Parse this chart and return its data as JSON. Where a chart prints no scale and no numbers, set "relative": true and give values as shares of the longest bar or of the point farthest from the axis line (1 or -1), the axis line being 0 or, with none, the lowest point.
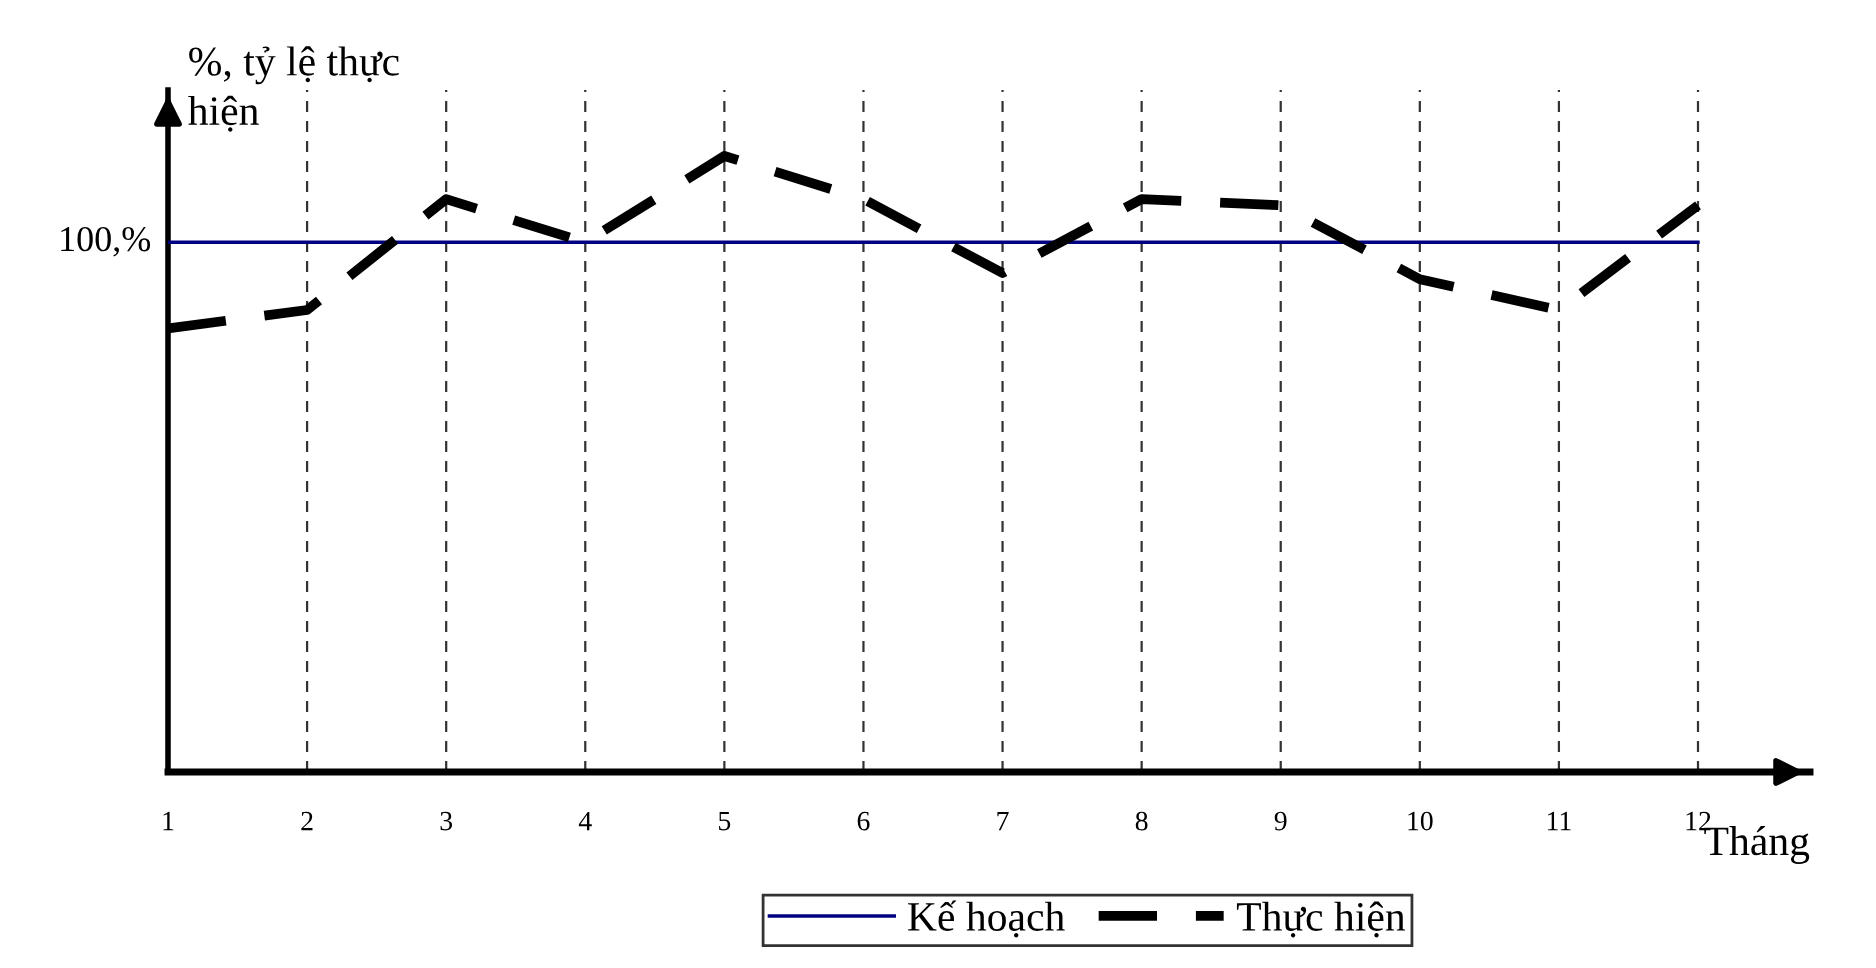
{
  "chart_data": {
    "type": "line",
    "relative": true,
    "ylabel": "%, tỷ lệ thực\nhiện",
    "xlabel": "Tháng",
    "categories": [
      "1",
      "2",
      "3",
      "4",
      "5",
      "6",
      "7",
      "8",
      "9",
      "10",
      "11",
      "12"
    ],
    "series": [
      {
        "name": "Kế hoạch",
        "color": "#000080",
        "line_style": "solid",
        "values": [
          0.86,
          0.86,
          0.86,
          0.86,
          0.86,
          0.86,
          0.86,
          0.86,
          0.86,
          0.86,
          0.86,
          0.86
        ]
      },
      {
        "name": "Thực hiện",
        "color": "#000000",
        "line_style": "dashed",
        "values": [
          0.72,
          0.75,
          0.93,
          0.86,
          1,
          0.93,
          0.81,
          0.93,
          0.92,
          0.8,
          0.75,
          0.92
        ]
      }
    ],
    "annotations": [
      "100,%"
    ],
    "grid": "x",
    "legend": "bottom",
    "marker": "none"
  }
}
